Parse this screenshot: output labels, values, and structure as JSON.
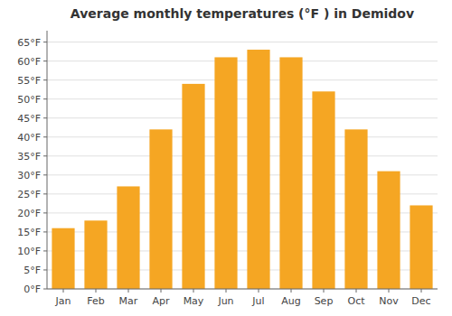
{
  "chart_data": {
    "type": "bar",
    "title": "Average monthly temperatures (°F ) in Demidov",
    "categories": [
      "Jan",
      "Feb",
      "Mar",
      "Apr",
      "May",
      "Jun",
      "Jul",
      "Aug",
      "Sep",
      "Oct",
      "Nov",
      "Dec"
    ],
    "values": [
      16,
      18,
      27,
      42,
      54,
      61,
      63,
      61,
      52,
      42,
      31,
      22
    ],
    "color": "#F5A623",
    "ylim": [
      0,
      68
    ],
    "yticks": [
      {
        "value": 0,
        "label": "0°F"
      },
      {
        "value": 5,
        "label": "5°F"
      },
      {
        "value": 10,
        "label": "10°F"
      },
      {
        "value": 15,
        "label": "15°F"
      },
      {
        "value": 20,
        "label": "20°F"
      },
      {
        "value": 25,
        "label": "25°F"
      },
      {
        "value": 30,
        "label": "30°F"
      },
      {
        "value": 35,
        "label": "35°F"
      },
      {
        "value": 40,
        "label": "40°F"
      },
      {
        "value": 45,
        "label": "45°F"
      },
      {
        "value": 50,
        "label": "50°F"
      },
      {
        "value": 55,
        "label": "55°F"
      },
      {
        "value": 60,
        "label": "60°F"
      },
      {
        "value": 65,
        "label": "65°F"
      }
    ],
    "grid": true
  }
}
